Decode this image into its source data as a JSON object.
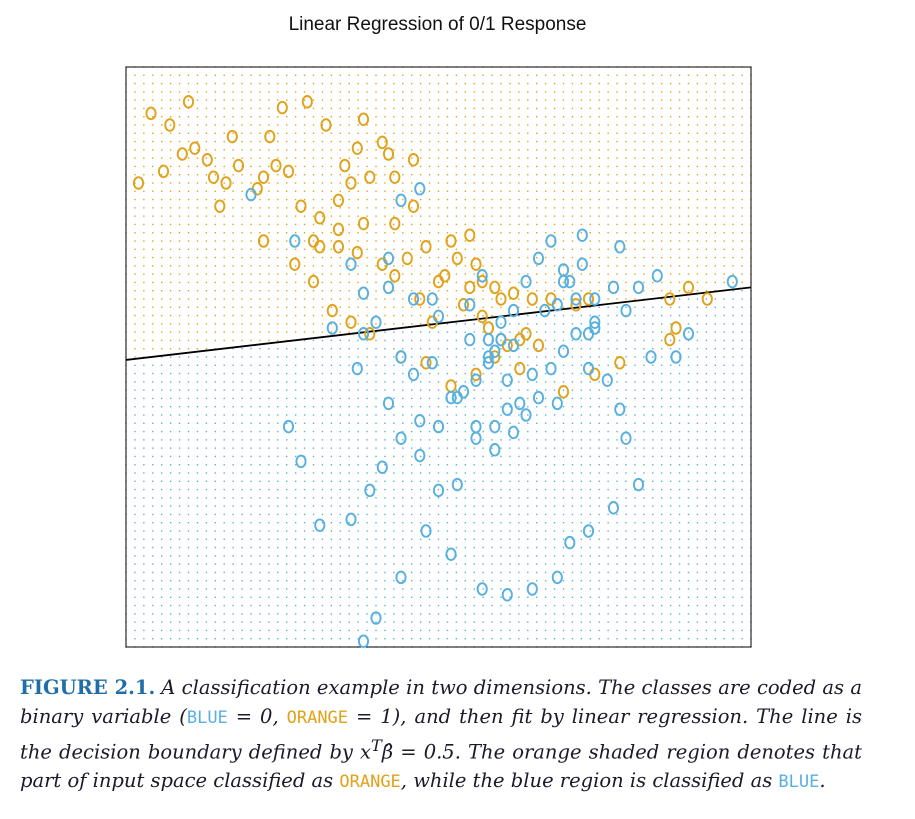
{
  "figure": {
    "title": "Linear Regression of 0/1 Response",
    "caption": {
      "label": "FIGURE 2.1.",
      "t1": "A classification example in two dimensions. The classes are coded as a binary variable (",
      "blue_word": "BLUE",
      "t2": " = 0, ",
      "orange_word": "ORANGE",
      "t3": " = 1), and then fit by linear regression. The line is the decision boundary defined by ",
      "math": "x",
      "sup": "T",
      "beta": "β̂",
      "t4": " = 0.5. The orange shaded region denotes that part of input space classified as ",
      "orange_word2": "ORANGE",
      "t5": ", while the blue region is classified as ",
      "blue_word2": "BLUE",
      "t6": "."
    }
  },
  "chart_data": {
    "type": "scatter",
    "title": "Linear Regression of 0/1 Response",
    "xlabel": "",
    "ylabel": "",
    "xlim": [
      0,
      1
    ],
    "ylim": [
      0,
      1
    ],
    "grid": false,
    "marker": "O",
    "colors": {
      "blue": "#57b0e0",
      "orange": "#e1a21a",
      "line": "#000000"
    },
    "decision_boundary": {
      "x": [
        0,
        1
      ],
      "y": [
        0.495,
        0.62
      ]
    },
    "series": [
      {
        "class": "orange",
        "x": [
          0.04,
          0.1,
          0.07,
          0.17,
          0.09,
          0.11,
          0.13,
          0.24,
          0.16,
          0.21,
          0.22,
          0.26,
          0.28,
          0.31,
          0.34,
          0.36,
          0.39,
          0.35,
          0.37,
          0.42,
          0.46,
          0.43,
          0.41,
          0.38,
          0.32,
          0.29,
          0.25,
          0.23,
          0.18,
          0.14,
          0.06,
          0.02,
          0.15,
          0.22,
          0.3,
          0.34,
          0.37,
          0.41,
          0.45,
          0.5,
          0.53,
          0.56,
          0.59,
          0.62,
          0.6,
          0.57,
          0.54,
          0.49,
          0.47,
          0.51,
          0.55,
          0.58,
          0.61,
          0.64,
          0.66,
          0.68,
          0.72,
          0.74,
          0.65,
          0.63,
          0.59,
          0.56,
          0.52,
          0.48,
          0.44,
          0.39,
          0.36,
          0.33,
          0.3,
          0.27,
          0.31,
          0.34,
          0.38,
          0.43,
          0.46,
          0.52,
          0.55,
          0.57,
          0.6,
          0.63,
          0.7,
          0.75,
          0.79,
          0.87,
          0.88,
          0.93,
          0.9,
          0.87,
          0.43,
          0.48
        ],
        "y": [
          0.92,
          0.94,
          0.9,
          0.88,
          0.85,
          0.86,
          0.84,
          0.83,
          0.8,
          0.79,
          0.81,
          0.82,
          0.76,
          0.74,
          0.77,
          0.8,
          0.81,
          0.83,
          0.86,
          0.85,
          0.84,
          0.81,
          0.87,
          0.91,
          0.9,
          0.94,
          0.93,
          0.88,
          0.83,
          0.81,
          0.82,
          0.8,
          0.76,
          0.7,
          0.7,
          0.69,
          0.68,
          0.66,
          0.67,
          0.63,
          0.67,
          0.66,
          0.62,
          0.61,
          0.6,
          0.57,
          0.59,
          0.56,
          0.6,
          0.64,
          0.62,
          0.55,
          0.52,
          0.54,
          0.52,
          0.6,
          0.59,
          0.6,
          0.6,
          0.53,
          0.5,
          0.47,
          0.45,
          0.49,
          0.5,
          0.54,
          0.56,
          0.58,
          0.63,
          0.66,
          0.69,
          0.72,
          0.73,
          0.73,
          0.76,
          0.7,
          0.71,
          0.63,
          0.53,
          0.48,
          0.44,
          0.47,
          0.49,
          0.53,
          0.55,
          0.6,
          0.62,
          0.6,
          0.64,
          0.69
        ]
      },
      {
        "class": "blue",
        "x": [
          0.2,
          0.27,
          0.36,
          0.38,
          0.42,
          0.44,
          0.47,
          0.49,
          0.55,
          0.57,
          0.58,
          0.59,
          0.6,
          0.62,
          0.67,
          0.69,
          0.71,
          0.73,
          0.75,
          0.72,
          0.68,
          0.66,
          0.61,
          0.58,
          0.55,
          0.5,
          0.46,
          0.42,
          0.4,
          0.38,
          0.44,
          0.46,
          0.49,
          0.52,
          0.54,
          0.56,
          0.59,
          0.61,
          0.63,
          0.65,
          0.7,
          0.74,
          0.78,
          0.8,
          0.82,
          0.84,
          0.88,
          0.97,
          0.9,
          0.85,
          0.79,
          0.73,
          0.7,
          0.75,
          0.74,
          0.69,
          0.64,
          0.62,
          0.59,
          0.56,
          0.53,
          0.5,
          0.47,
          0.44,
          0.41,
          0.39,
          0.36,
          0.31,
          0.28,
          0.26,
          0.33,
          0.37,
          0.42,
          0.47,
          0.5,
          0.53,
          0.56,
          0.58,
          0.6,
          0.62,
          0.64,
          0.66,
          0.68,
          0.7,
          0.72,
          0.75,
          0.77,
          0.79,
          0.8,
          0.82,
          0.78,
          0.74,
          0.71,
          0.69,
          0.65,
          0.61,
          0.57,
          0.52,
          0.48,
          0.44,
          0.4,
          0.38
        ],
        "y": [
          0.78,
          0.7,
          0.66,
          0.61,
          0.67,
          0.77,
          0.79,
          0.6,
          0.59,
          0.64,
          0.53,
          0.51,
          0.56,
          0.52,
          0.58,
          0.59,
          0.63,
          0.66,
          0.6,
          0.54,
          0.48,
          0.43,
          0.46,
          0.49,
          0.53,
          0.57,
          0.6,
          0.62,
          0.56,
          0.54,
          0.5,
          0.47,
          0.49,
          0.43,
          0.44,
          0.38,
          0.38,
          0.41,
          0.42,
          0.47,
          0.51,
          0.54,
          0.62,
          0.58,
          0.62,
          0.5,
          0.5,
          0.63,
          0.54,
          0.64,
          0.69,
          0.71,
          0.63,
          0.56,
          0.48,
          0.42,
          0.4,
          0.37,
          0.34,
          0.36,
          0.28,
          0.27,
          0.33,
          0.36,
          0.31,
          0.27,
          0.22,
          0.21,
          0.32,
          0.38,
          0.55,
          0.48,
          0.42,
          0.39,
          0.38,
          0.43,
          0.46,
          0.5,
          0.53,
          0.58,
          0.63,
          0.67,
          0.7,
          0.65,
          0.6,
          0.55,
          0.46,
          0.41,
          0.36,
          0.28,
          0.24,
          0.2,
          0.18,
          0.12,
          0.1,
          0.09,
          0.1,
          0.16,
          0.2,
          0.12,
          0.05,
          0.01
        ]
      }
    ]
  }
}
